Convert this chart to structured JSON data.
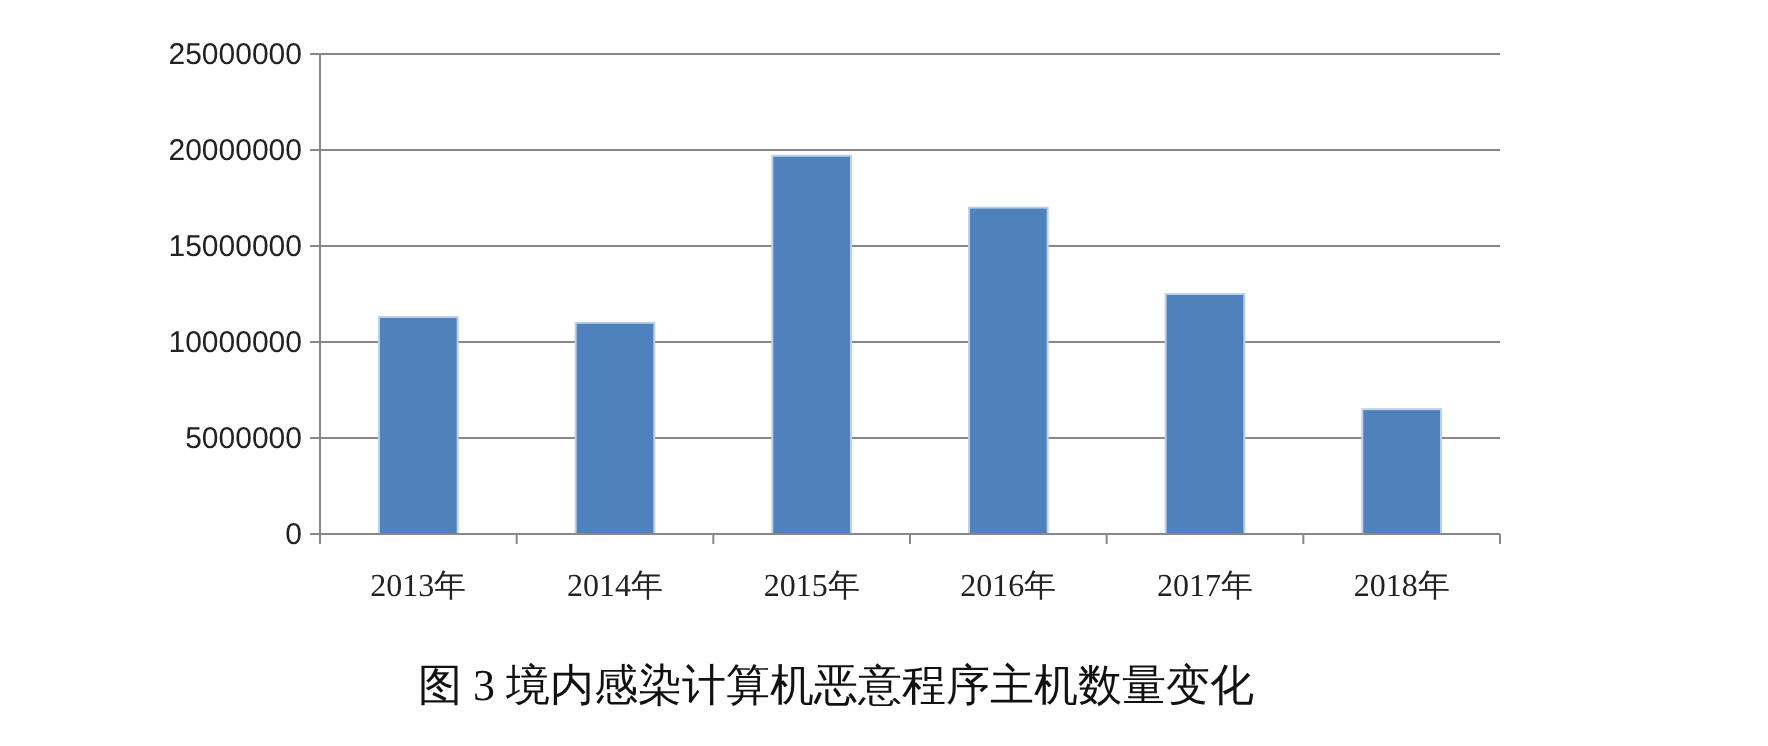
{
  "chart_data": {
    "type": "bar",
    "title": "图 3 境内感染计算机恶意程序主机数量变化",
    "categories": [
      "2013年",
      "2014年",
      "2015年",
      "2016年",
      "2017年",
      "2018年"
    ],
    "values": [
      11300000,
      11000000,
      19700000,
      17000000,
      12500000,
      6500000
    ],
    "color": "#4f81bd",
    "ylim": [
      0,
      25000000
    ],
    "yticks": [
      0,
      5000000,
      10000000,
      15000000,
      20000000,
      25000000
    ],
    "grid": "y"
  }
}
